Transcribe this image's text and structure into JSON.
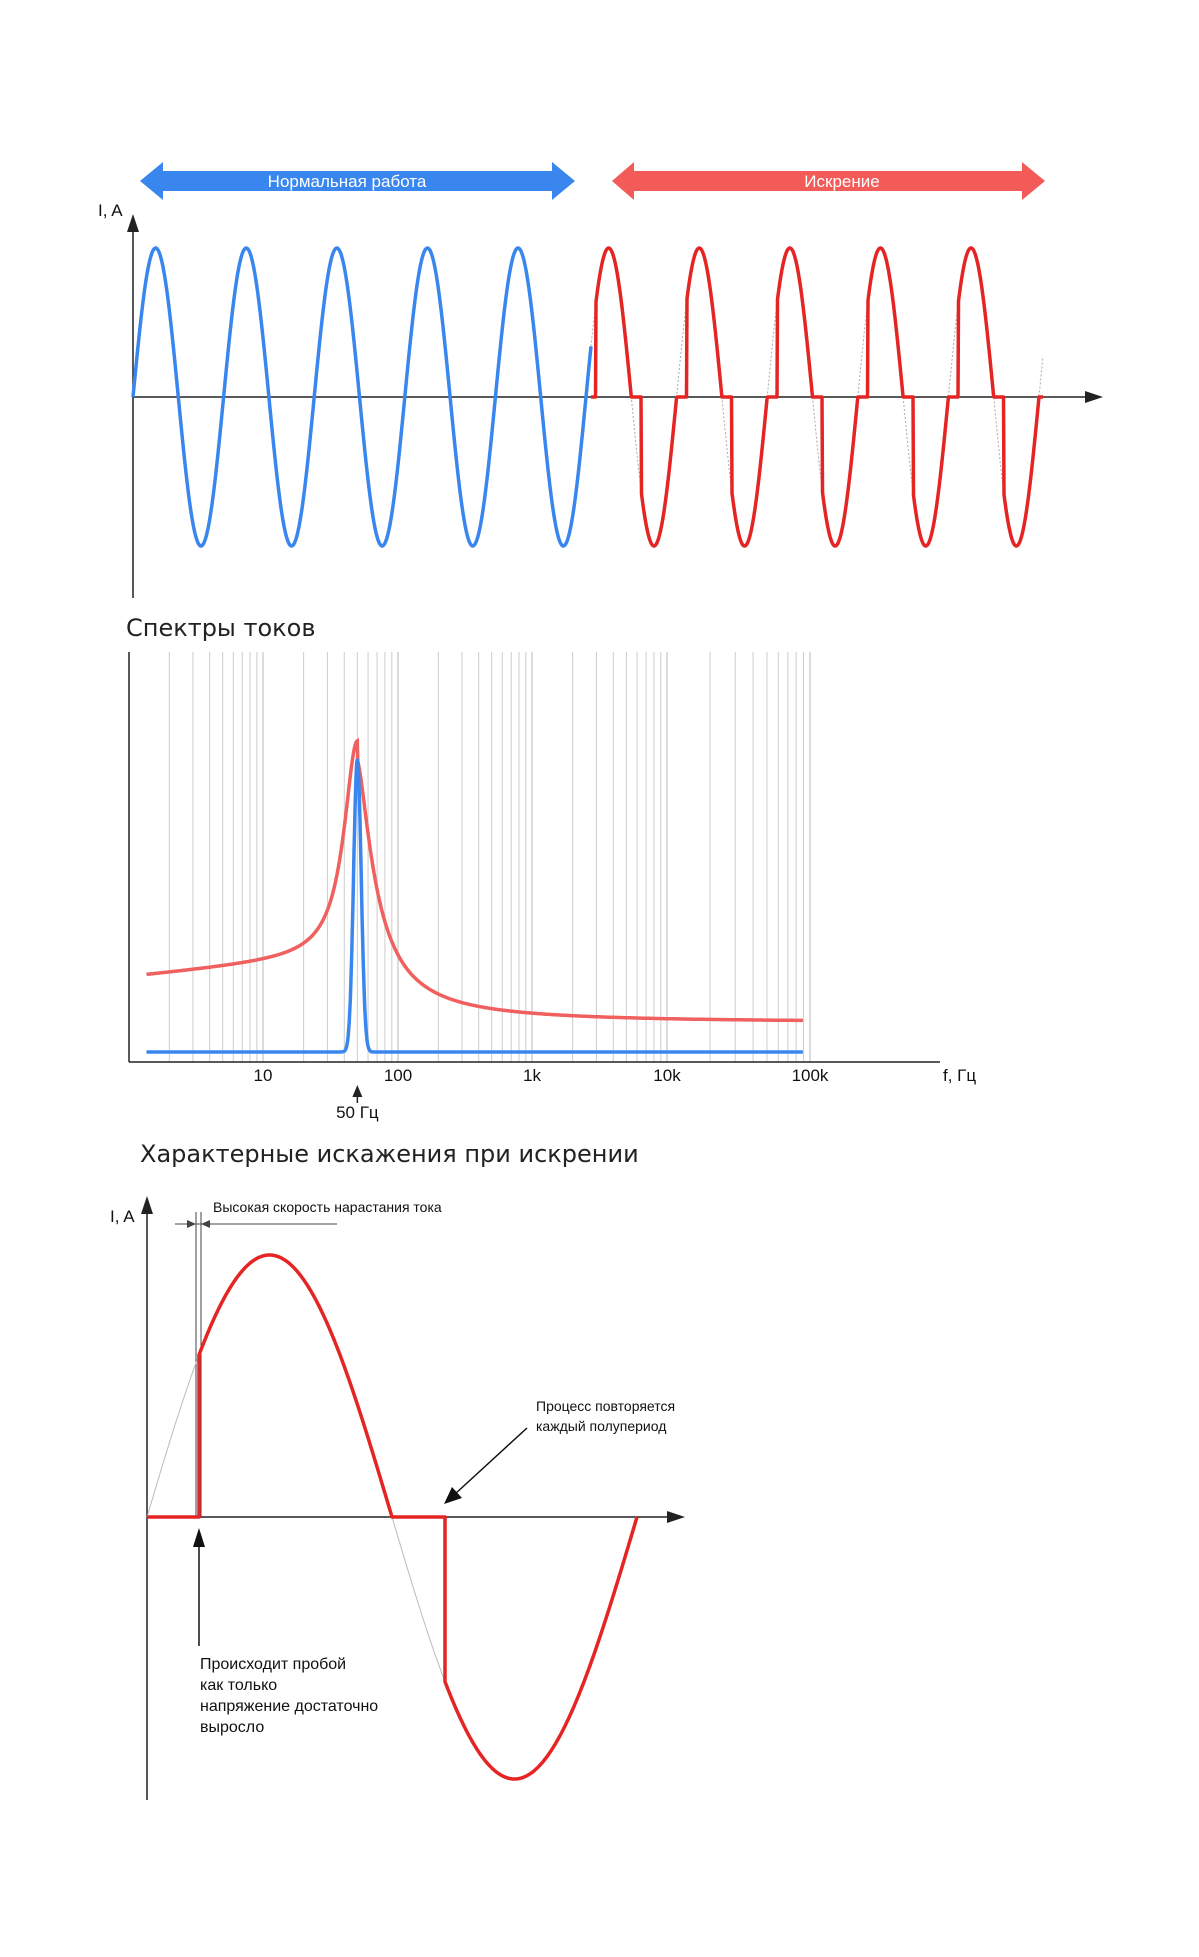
{
  "colors": {
    "normal": "#3a86ef",
    "spark": "#e52424",
    "spark_light": "#f0605e",
    "arrow_normal": "#3a86ef",
    "arrow_spark": "#f25b58",
    "grid": "#c8c8c8",
    "axis": "#222222"
  },
  "top": {
    "normal_label": "Нормальная работа",
    "spark_label": "Искрение",
    "y_axis": "I, A"
  },
  "spectrum": {
    "title": "Спектры токов",
    "x_axis": "f, Гц",
    "ticks": [
      "10",
      "100",
      "1k",
      "10k",
      "100k"
    ],
    "marker": "50 Гц",
    "peak_hz": 50
  },
  "detail": {
    "title": "Характерные искажения при искрении",
    "y_axis": "I, A",
    "rise_label": "Высокая скорость нарастания тока",
    "repeat_line1": "Процесс повторяется",
    "repeat_line2": "каждый полупериод",
    "breakdown_line1": "Происходит пробой",
    "breakdown_line2": "как только",
    "breakdown_line3": "напряжение достаточно",
    "breakdown_line4": "выросло"
  }
}
